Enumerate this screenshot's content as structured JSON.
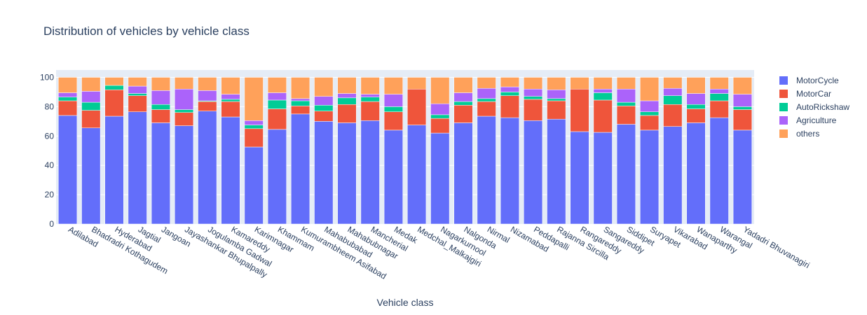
{
  "chart_data": {
    "type": "bar",
    "barmode": "stack",
    "title": "Distribution of vehicles by vehicle class",
    "xlabel": "Vehicle class",
    "ylabel": "",
    "ylim": [
      0,
      105
    ],
    "yticks": [
      0,
      20,
      40,
      60,
      80,
      100
    ],
    "grid": true,
    "legend_position": "top-right",
    "categories": [
      "Adilabad",
      "Bhadradri Kothagudem",
      "Hyderabad",
      "Jagtial",
      "Jangoan",
      "Jayashankar Bhupalpally",
      "Jogulamba Gadwal",
      "Kamareddy",
      "Karimnagar",
      "Khammam",
      "Kumurambheem Asifabad",
      "Mahabubabad",
      "Mahabubnagar",
      "Mancherial",
      "Medak",
      "Medchal_Malkajgiri",
      "Nagarkurnool",
      "Nalgonda",
      "Nirmal",
      "Nizamabad",
      "Peddapalli",
      "Rajanna Sircilla",
      "Rangareddy",
      "Sangareddy",
      "Siddipet",
      "Suryapet",
      "Vikarabad",
      "Wanaparthy",
      "Warangal",
      "Yadadri Bhuvanagiri"
    ],
    "series": [
      {
        "name": "MotorCycle",
        "color": "#636efa",
        "values": [
          74,
          65.5,
          73.5,
          76.5,
          69,
          67,
          77,
          73,
          52.5,
          64.5,
          75,
          70,
          69,
          70.5,
          64,
          67.5,
          62,
          69,
          73.5,
          72.5,
          70.5,
          71.5,
          63,
          62.5,
          68,
          64,
          66.5,
          69,
          72.5,
          64
        ]
      },
      {
        "name": "MotorCar",
        "color": "#ef553b",
        "values": [
          10,
          12,
          18,
          11,
          9,
          9,
          6.5,
          10.5,
          12.5,
          14,
          5.5,
          7,
          12.5,
          13,
          12.5,
          24.5,
          10,
          12,
          10,
          15,
          14.5,
          12.5,
          29,
          22,
          12.5,
          10,
          15,
          9.5,
          11.5,
          14
        ]
      },
      {
        "name": "AutoRickshaw",
        "color": "#00cc96",
        "values": [
          2.5,
          5.5,
          3,
          1.5,
          3.5,
          2,
          0.5,
          1.5,
          2.5,
          6,
          3.5,
          4,
          4.5,
          3,
          3.5,
          0,
          2.5,
          2.5,
          2,
          2.5,
          2,
          1.5,
          0,
          5,
          2.5,
          2.5,
          6,
          3,
          5,
          2
        ]
      },
      {
        "name": "Agriculture",
        "color": "#ab63fa",
        "values": [
          3,
          7.5,
          0,
          5,
          9.5,
          14,
          7,
          3.5,
          3,
          5,
          1.5,
          6,
          3,
          2,
          8.5,
          0,
          7.5,
          6,
          7,
          3.5,
          5,
          6,
          0,
          2.5,
          9,
          7.5,
          5,
          7.5,
          3,
          8.5
        ]
      },
      {
        "name": "others",
        "color": "#ffa15a",
        "values": [
          10.5,
          9.5,
          5.5,
          6,
          9,
          8,
          9,
          11.5,
          29.5,
          10.5,
          14.5,
          13,
          11,
          11.5,
          11.5,
          8,
          18,
          10.5,
          7.5,
          6.5,
          8,
          8.5,
          8,
          8,
          8,
          16,
          7.5,
          11,
          8,
          11.5
        ]
      }
    ]
  }
}
